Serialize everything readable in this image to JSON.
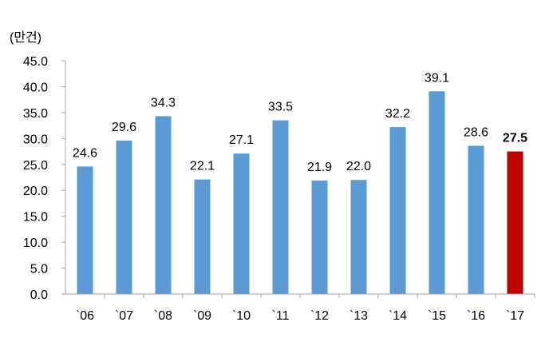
{
  "chart_data": {
    "type": "bar",
    "unit_label": "(만건)",
    "categories": [
      "`06",
      "`07",
      "`08",
      "`09",
      "`10",
      "`11",
      "`12",
      "`13",
      "`14",
      "`15",
      "`16",
      "`17"
    ],
    "values": [
      24.6,
      29.6,
      34.3,
      22.1,
      27.1,
      33.5,
      21.9,
      22.0,
      32.2,
      39.1,
      28.6,
      27.5
    ],
    "value_labels": [
      "24.6",
      "29.6",
      "34.3",
      "22.1",
      "27.1",
      "33.5",
      "21.9",
      "22.0",
      "32.2",
      "39.1",
      "28.6",
      "27.5"
    ],
    "highlight_index": 11,
    "ylim": [
      0,
      45
    ],
    "yticks": [
      "0.0",
      "5.0",
      "10.0",
      "15.0",
      "20.0",
      "25.0",
      "30.0",
      "35.0",
      "40.0",
      "45.0"
    ],
    "grid": false,
    "legend": "none",
    "colors": {
      "bar": "#5B9BD5",
      "highlight_bar": "#C00000",
      "axis": "#A6A6A6",
      "text": "#000000"
    }
  }
}
